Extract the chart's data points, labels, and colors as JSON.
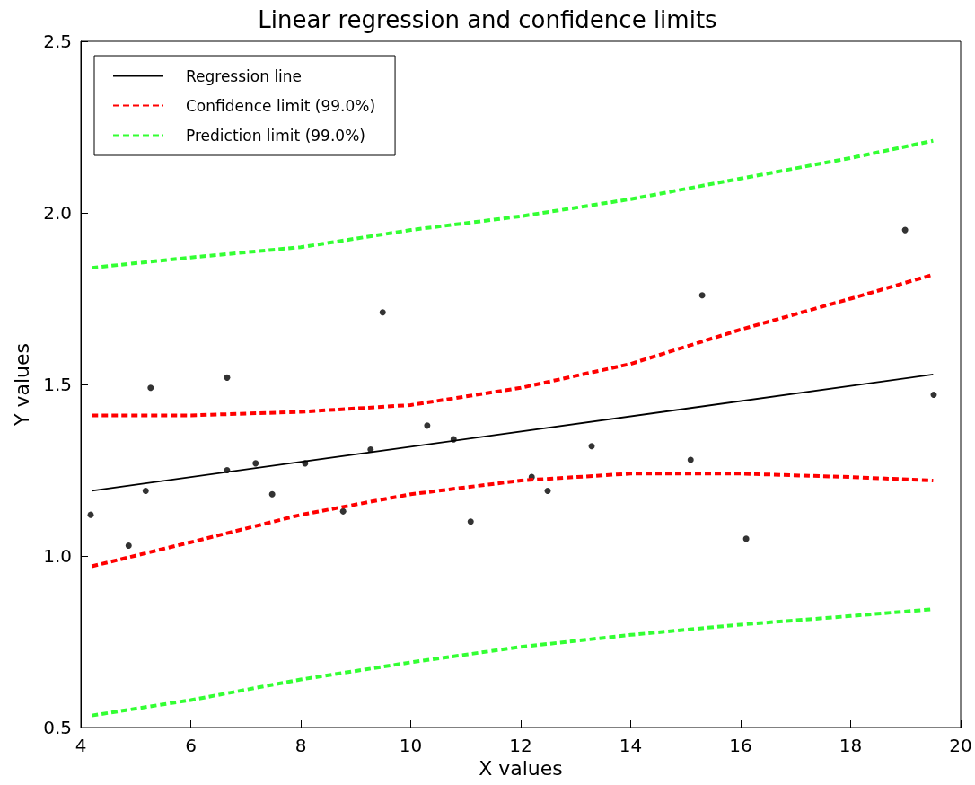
{
  "chart_data": {
    "type": "line",
    "title": "Linear regression and confidence limits",
    "xlabel": "X values",
    "ylabel": "Y values",
    "xlim": [
      4,
      20
    ],
    "xticks": [
      4,
      6,
      8,
      10,
      12,
      14,
      16,
      18,
      20
    ],
    "ylim": [
      0.5,
      2.5
    ],
    "yticks": [
      0.5,
      {
        "value": 1,
        "label": "1.0"
      },
      1.5,
      {
        "value": 2,
        "label": "2.0"
      },
      2.5
    ],
    "grid": false,
    "legend": "top left",
    "series": [
      {
        "type": "scatter",
        "color": "#000000",
        "marker": "circle",
        "x": [
          4.18,
          4.87,
          5.18,
          5.27,
          6.66,
          6.66,
          7.18,
          7.48,
          8.08,
          8.77,
          9.27,
          9.49,
          10.3,
          10.78,
          11.09,
          12.2,
          12.49,
          13.29,
          15.09,
          15.3,
          16.1,
          18.99,
          19.51
        ],
        "values": [
          1.12,
          1.03,
          1.19,
          1.49,
          1.52,
          1.25,
          1.27,
          1.18,
          1.27,
          1.13,
          1.31,
          1.71,
          1.38,
          1.34,
          1.1,
          1.23,
          1.19,
          1.32,
          1.28,
          1.76,
          1.05,
          1.95,
          1.47
        ]
      },
      {
        "name": "Regression line",
        "color": "#000000",
        "line_style": "solid",
        "x": [
          4.2,
          19.5
        ],
        "values": [
          1.19,
          1.529
        ]
      },
      {
        "name": "Confidence limit (99.0%)",
        "color": "#ff0000",
        "line_style": "dashed",
        "x": [
          4.2,
          6,
          8,
          10,
          12,
          14,
          16,
          18,
          19.5
        ],
        "values": [
          1.41,
          1.41,
          1.42,
          1.44,
          1.49,
          1.56,
          1.66,
          1.75,
          1.82
        ]
      },
      {
        "color": "#ff0000",
        "line_style": "dashed",
        "x": [
          4.2,
          6,
          8,
          10,
          12,
          14,
          16,
          18,
          19.5
        ],
        "values": [
          0.97,
          1.04,
          1.12,
          1.18,
          1.22,
          1.24,
          1.24,
          1.23,
          1.22
        ]
      },
      {
        "name": "Prediction limit (99.0%)",
        "color": "#33ff33",
        "line_style": "dashed",
        "x": [
          4.2,
          6,
          8,
          10,
          12,
          14,
          16,
          18,
          19.5
        ],
        "values": [
          1.84,
          1.87,
          1.9,
          1.95,
          1.99,
          2.04,
          2.1,
          2.16,
          2.21
        ]
      },
      {
        "color": "#33ff33",
        "line_style": "dashed",
        "x": [
          4.2,
          6,
          8,
          10,
          12,
          14,
          16,
          18,
          19.5
        ],
        "values": [
          0.535,
          0.58,
          0.64,
          0.69,
          0.735,
          0.77,
          0.8,
          0.825,
          0.845
        ]
      }
    ]
  }
}
